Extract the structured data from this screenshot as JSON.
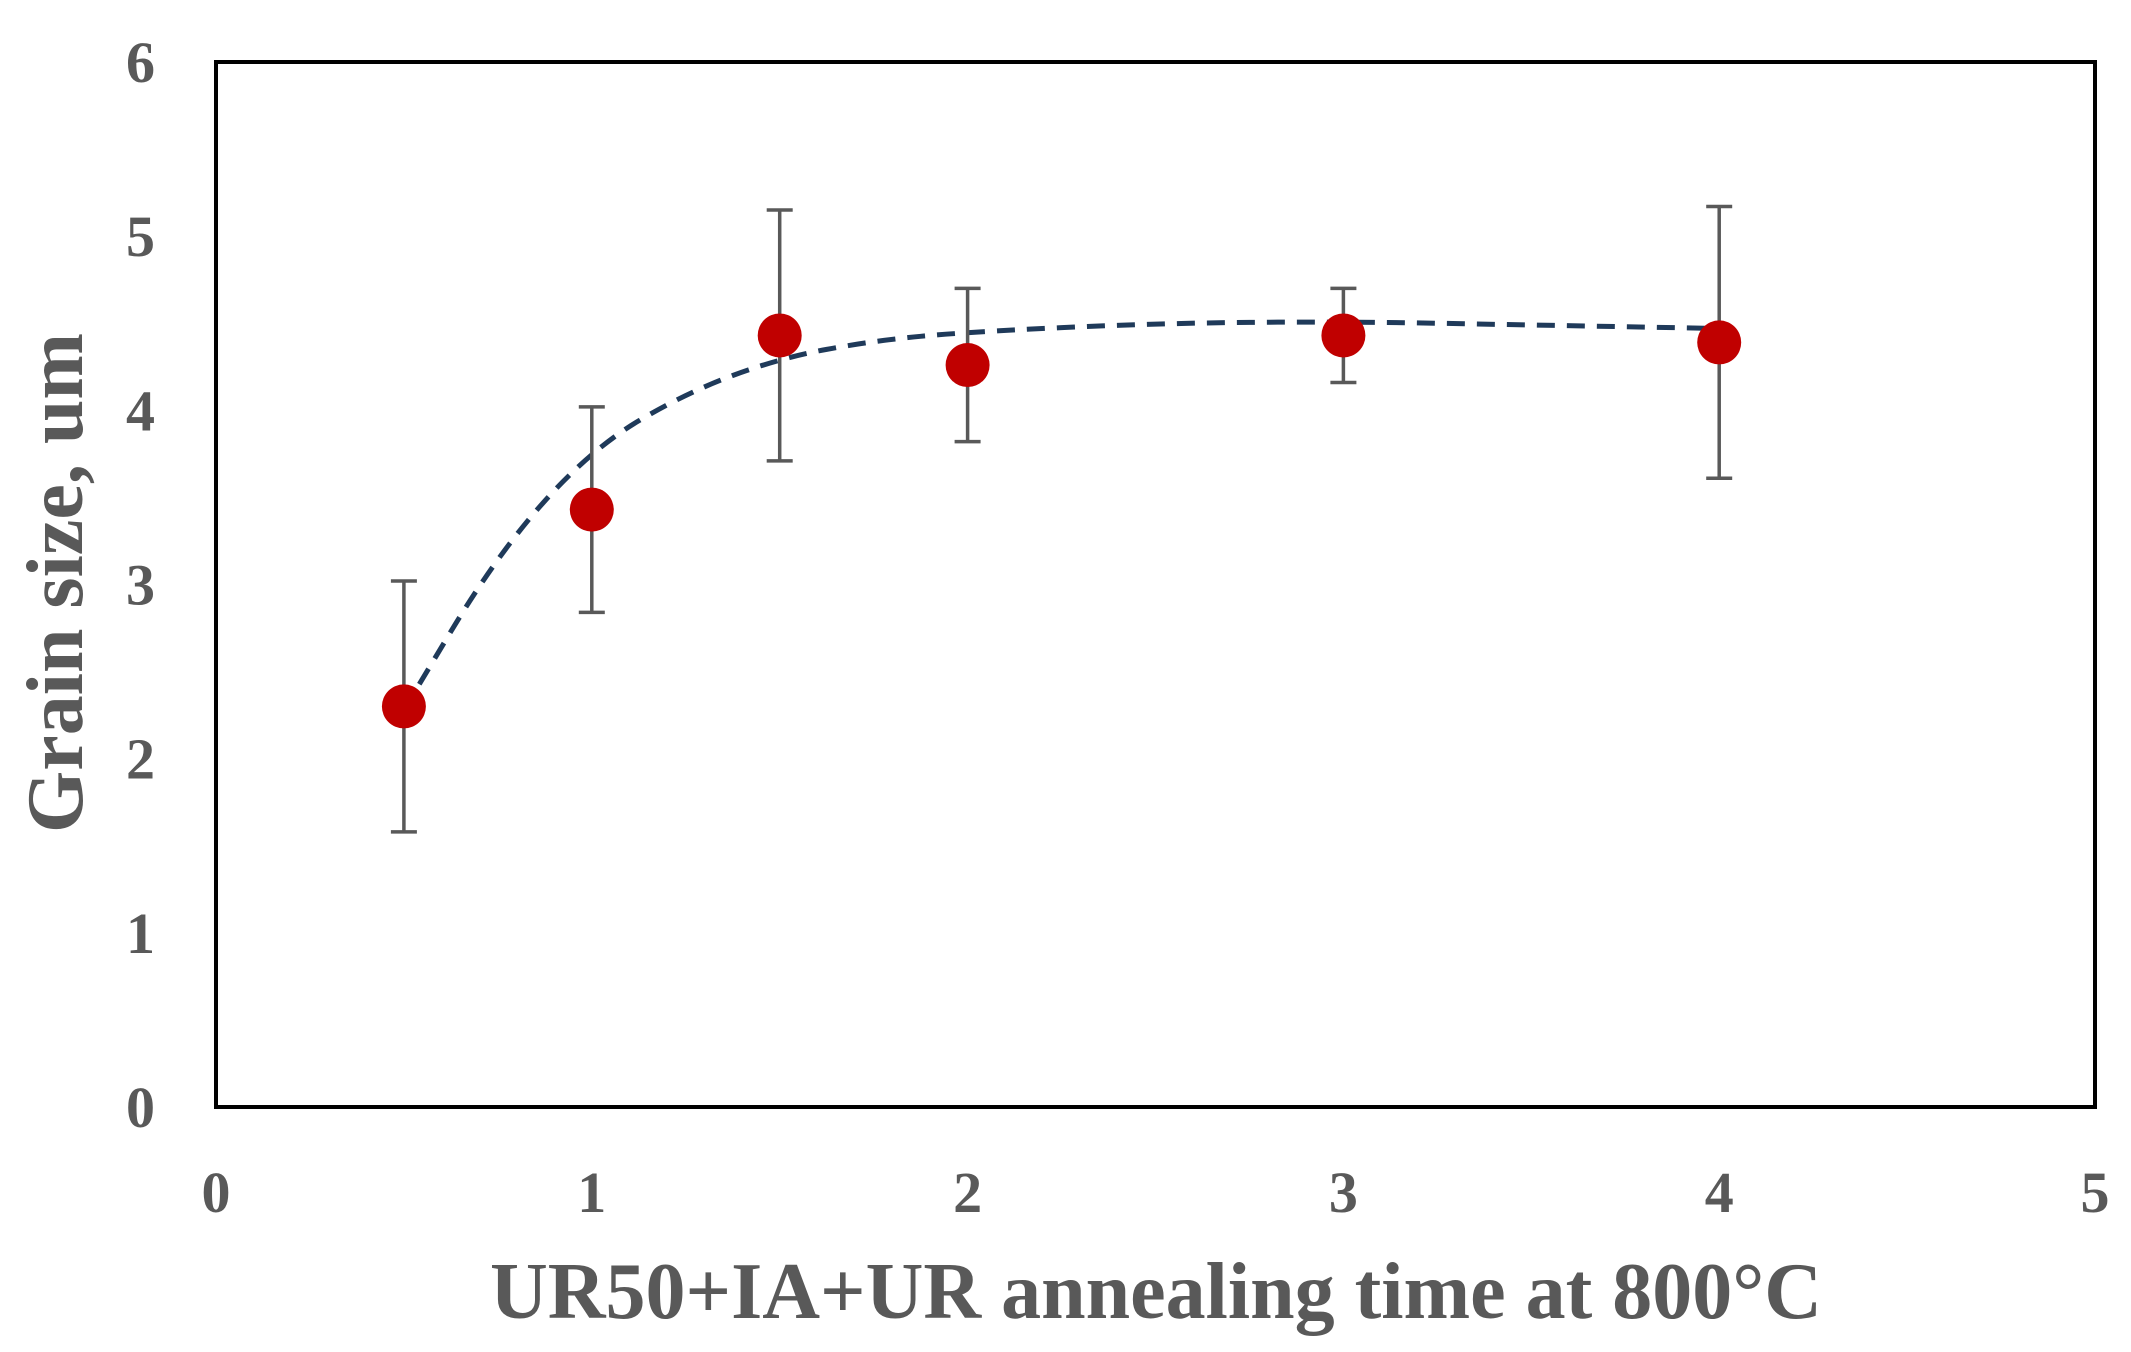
{
  "chart_data": {
    "type": "scatter",
    "title": "",
    "xlabel": "UR50+IA+UR annealing time at 800°C",
    "ylabel": "Grain size, um",
    "xlim": [
      0,
      5
    ],
    "ylim": [
      0,
      6
    ],
    "x_ticks": [
      "0",
      "1",
      "2",
      "3",
      "4",
      "5"
    ],
    "y_ticks": [
      "0",
      "1",
      "2",
      "3",
      "4",
      "5",
      "6"
    ],
    "grid": false,
    "legend": "none",
    "series": [
      {
        "x": [
          0.5,
          1.0,
          1.5,
          2.0,
          3.0,
          4.0
        ],
        "y": [
          2.3,
          3.43,
          4.43,
          4.26,
          4.43,
          4.39
        ],
        "error": [
          0.72,
          0.59,
          0.72,
          0.44,
          0.27,
          0.78
        ],
        "color": "#c00000",
        "marker": "circle"
      }
    ],
    "trendline": {
      "style": "dashed",
      "color": "#1f3a5a",
      "x": [
        0.5,
        0.75,
        1.0,
        1.25,
        1.5,
        1.75,
        2.0,
        2.5,
        3.0,
        3.5,
        4.0
      ],
      "y": [
        2.28,
        3.18,
        3.78,
        4.1,
        4.3,
        4.4,
        4.45,
        4.5,
        4.51,
        4.49,
        4.47
      ]
    }
  }
}
